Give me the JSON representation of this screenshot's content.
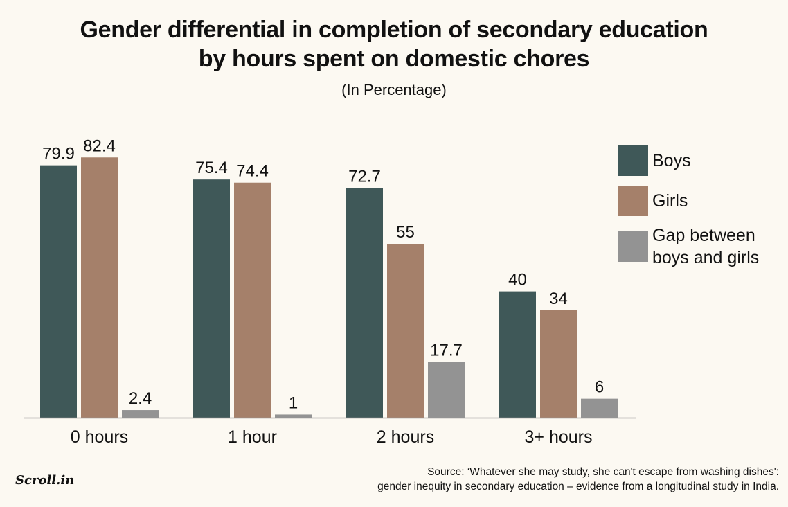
{
  "title_lines": [
    "Gender differential in completion of secondary education",
    "by hours spent on domestic chores"
  ],
  "subtitle": "(In Percentage)",
  "chart_data": {
    "type": "bar",
    "categories": [
      "0 hours",
      "1 hour",
      "2 hours",
      "3+ hours"
    ],
    "series": [
      {
        "name": "Boys",
        "color": "#3f5858",
        "values": [
          79.9,
          75.4,
          72.7,
          40
        ],
        "labels": [
          "79.9",
          "75.4",
          "72.7",
          "40"
        ]
      },
      {
        "name": "Girls",
        "color": "#a5806a",
        "values": [
          82.4,
          74.4,
          55,
          34
        ],
        "labels": [
          "82.4",
          "74.4",
          "55",
          "34"
        ]
      },
      {
        "name": "Gap between boys and girls",
        "color": "#939393",
        "values": [
          2.4,
          1,
          17.7,
          6
        ],
        "labels": [
          "2.4",
          "1",
          "17.7",
          "6"
        ]
      }
    ],
    "ylim": [
      0,
      100
    ],
    "grid": false,
    "legend": "right"
  },
  "legend": {
    "items": [
      {
        "lines": [
          "Boys"
        ],
        "color": "#3f5858"
      },
      {
        "lines": [
          "Girls"
        ],
        "color": "#a5806a"
      },
      {
        "lines": [
          "Gap between",
          "boys and girls"
        ],
        "color": "#939393"
      }
    ]
  },
  "source_lines": [
    "Source: ‘Whatever she may study, she can't escape from washing dishes':",
    "gender inequity in secondary education – evidence from a longitudinal study in India."
  ],
  "logo": "Scroll.in",
  "colors": {
    "background": "#fcf9f2",
    "axis": "#999999",
    "text": "#111111"
  }
}
